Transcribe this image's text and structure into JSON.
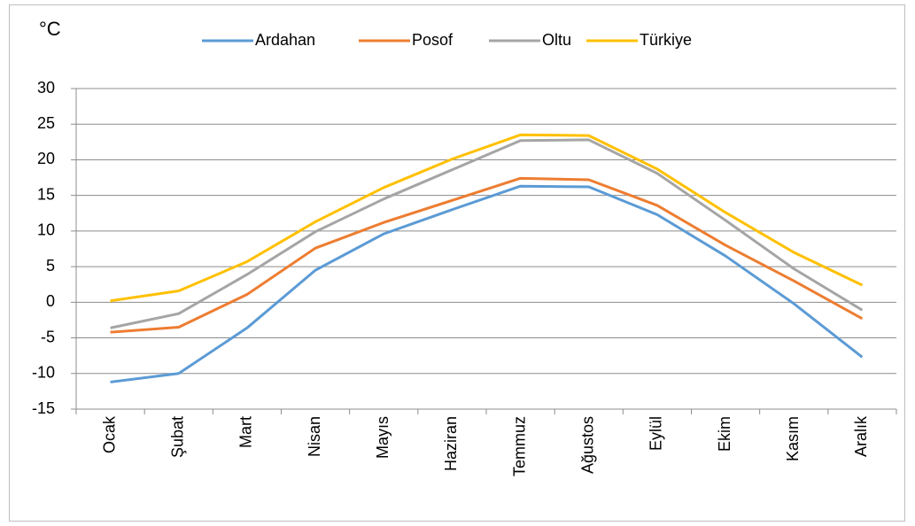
{
  "chart_data": {
    "type": "line",
    "y_unit": "°C",
    "categories": [
      "Ocak",
      "Şubat",
      "Mart",
      "Nisan",
      "Mayıs",
      "Haziran",
      "Temmuz",
      "Ağustos",
      "Eylül",
      "Ekim",
      "Kasım",
      "Aralık"
    ],
    "series": [
      {
        "name": "Ardahan",
        "color": "#5b9bd5",
        "values": [
          -11.2,
          -10,
          -3.6,
          4.5,
          9.6,
          13,
          16.3,
          16.2,
          12.3,
          6.5,
          -0.2,
          -7.7
        ]
      },
      {
        "name": "Posof",
        "color": "#ed7d31",
        "values": [
          -4.2,
          -3.5,
          1.1,
          7.6,
          11.2,
          14.3,
          17.4,
          17.2,
          13.6,
          8,
          3,
          -2.3
        ]
      },
      {
        "name": "Oltu",
        "color": "#a5a5a5",
        "values": [
          -3.6,
          -1.6,
          3.9,
          9.9,
          14.5,
          18.6,
          22.7,
          22.8,
          18.1,
          11.5,
          4.7,
          -1.1
        ]
      },
      {
        "name": "Türkiye",
        "color": "#ffc000",
        "values": [
          0.2,
          1.6,
          5.7,
          11.3,
          16.1,
          20.1,
          23.5,
          23.4,
          18.7,
          12.6,
          7,
          2.4
        ]
      }
    ],
    "ylim": [
      -15,
      30
    ],
    "yticks": [
      -15,
      -10,
      -5,
      0,
      5,
      10,
      15,
      20,
      25,
      30
    ],
    "grid": true,
    "legend": "top"
  }
}
